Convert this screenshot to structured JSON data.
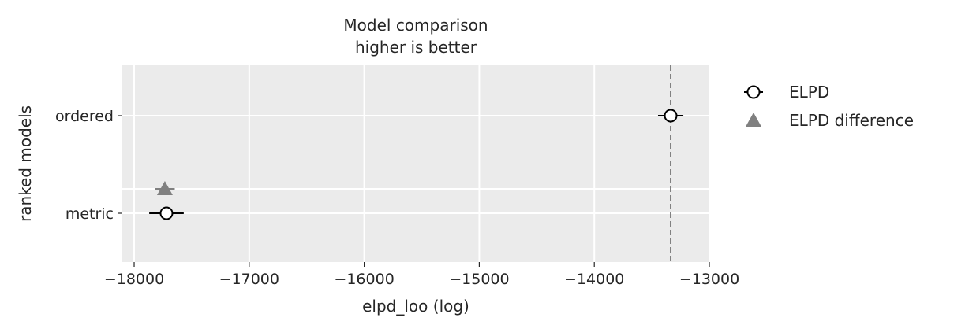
{
  "chart_data": {
    "type": "scatter",
    "title": "Model comparison\nhigher is better",
    "title_lines": [
      "Model comparison",
      "higher is better"
    ],
    "xlabel": "elpd_loo (log)",
    "ylabel": "ranked models",
    "xlim": [
      -18103,
      -13000
    ],
    "xticks": [
      -18000,
      -17000,
      -16000,
      -15000,
      -14000,
      -13000
    ],
    "xtick_labels": [
      "−18000",
      "−17000",
      "−16000",
      "−15000",
      "−14000",
      "−13000"
    ],
    "models": [
      "ordered",
      "metric"
    ],
    "grid": true,
    "background": "#EBEBEB",
    "legend_position": "outside-right",
    "series": [
      {
        "name": "ELPD",
        "marker": "open-circle",
        "color": "#000000",
        "values": [
          -13336,
          -17719
        ],
        "errors": [
          110,
          150
        ]
      },
      {
        "name": "ELPD difference",
        "marker": "triangle",
        "color": "#808080",
        "values": [
          null,
          -17733
        ],
        "errors": [
          null,
          86
        ]
      }
    ],
    "reference_line": {
      "value": -13336,
      "style": "dashed",
      "color": "#808080"
    }
  }
}
